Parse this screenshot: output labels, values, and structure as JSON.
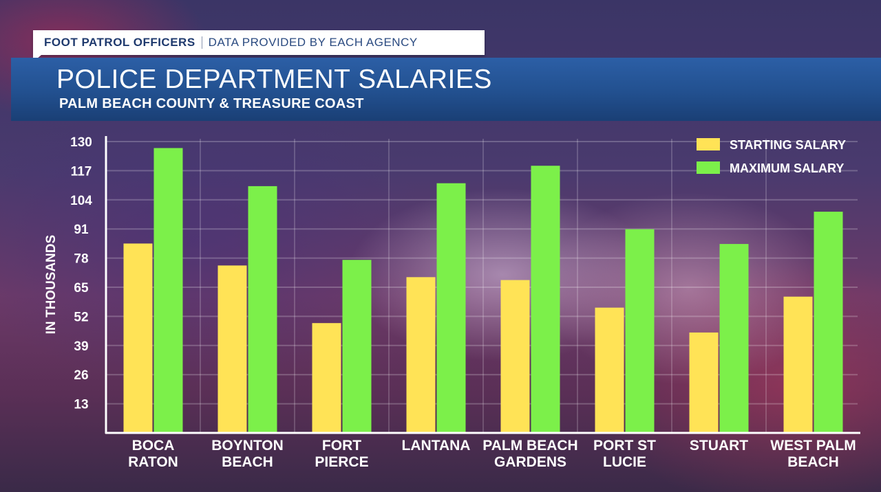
{
  "header": {
    "tag_primary": "FOOT PATROL OFFICERS",
    "tag_secondary": "DATA PROVIDED BY EACH AGENCY",
    "title": "POLICE DEPARTMENT SALARIES",
    "subtitle": "PALM BEACH COUNTY & TREASURE COAST"
  },
  "colors": {
    "starting": "#ffe356",
    "maximum": "#7cf04a",
    "banner": "#22508f",
    "axis_text": "#ffffff"
  },
  "chart_data": {
    "type": "bar",
    "title": "POLICE DEPARTMENT SALARIES",
    "subtitle": "PALM BEACH COUNTY & TREASURE COAST",
    "xlabel": "",
    "ylabel": "IN THOUSANDS",
    "ylim": [
      0,
      130
    ],
    "yticks": [
      13,
      26,
      39,
      52,
      65,
      78,
      91,
      104,
      117,
      130
    ],
    "grid": true,
    "legend_position": "top-right",
    "categories": [
      [
        "BOCA",
        "RATON"
      ],
      [
        "BOYNTON",
        "BEACH"
      ],
      [
        "FORT",
        "PIERCE"
      ],
      [
        "LANTANA"
      ],
      [
        "PALM BEACH",
        "GARDENS"
      ],
      [
        "PORT ST",
        "LUCIE"
      ],
      [
        "STUART"
      ],
      [
        "WEST PALM",
        "BEACH"
      ]
    ],
    "series": [
      {
        "name": "STARTING SALARY",
        "values": [
          84.5,
          74.7,
          49.0,
          69.5,
          68.2,
          55.9,
          44.8,
          60.8
        ]
      },
      {
        "name": "MAXIMUM SALARY",
        "values": [
          127.1,
          110.1,
          77.2,
          111.4,
          119.2,
          90.9,
          84.3,
          98.7
        ]
      }
    ]
  }
}
